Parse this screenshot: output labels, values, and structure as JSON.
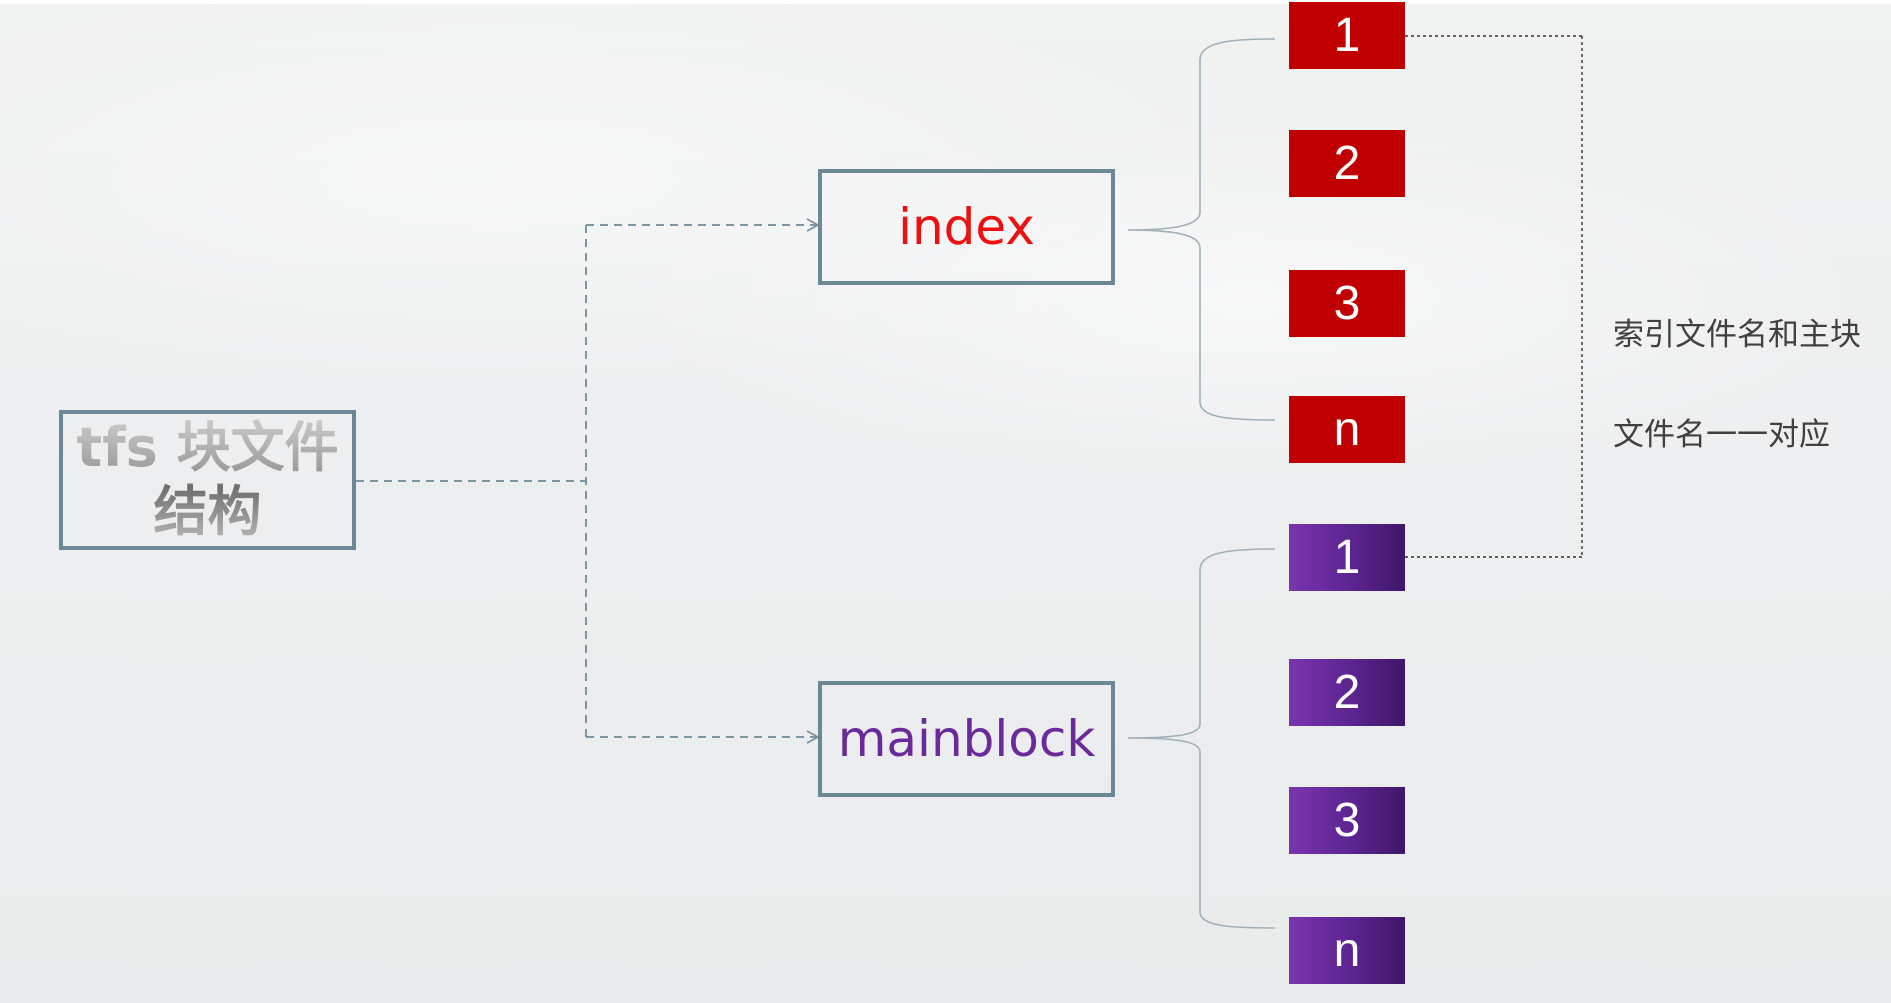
{
  "root": {
    "label_line1": "tfs 块文件",
    "label_line2": "结构"
  },
  "index": {
    "label": "index",
    "color": "#ee1010",
    "items": [
      "1",
      "2",
      "3",
      "n"
    ],
    "item_color": "#c00000"
  },
  "mainblock": {
    "label": "mainblock",
    "color": "#6b2a9b",
    "items": [
      "1",
      "2",
      "3",
      "n"
    ],
    "item_color": "#6b2a9b"
  },
  "note": {
    "line1": "索引文件名和主块",
    "line2": "文件名一一对应"
  },
  "colors": {
    "box_border": "#6b8896",
    "connector": "#8a9ea8"
  }
}
